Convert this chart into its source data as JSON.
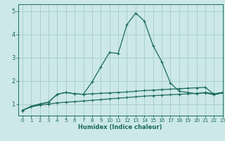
{
  "title": "",
  "xlabel": "Humidex (Indice chaleur)",
  "bg_color": "#cce8e8",
  "grid_color": "#aacfcf",
  "line_color": "#1a6b5a",
  "xlim": [
    -0.5,
    23
  ],
  "ylim": [
    0.5,
    5.3
  ],
  "yticks": [
    1,
    2,
    3,
    4,
    5
  ],
  "xticks": [
    0,
    1,
    2,
    3,
    4,
    5,
    6,
    7,
    8,
    9,
    10,
    11,
    12,
    13,
    14,
    15,
    16,
    17,
    18,
    19,
    20,
    21,
    22,
    23
  ],
  "curve1_x": [
    0,
    1,
    2,
    3,
    4,
    5,
    6,
    7,
    8,
    9,
    10,
    11,
    12,
    13,
    14,
    15,
    16,
    17,
    18,
    19,
    20,
    21,
    22,
    23
  ],
  "curve1_y": [
    0.72,
    0.88,
    0.95,
    1.0,
    1.05,
    1.08,
    1.1,
    1.13,
    1.16,
    1.19,
    1.22,
    1.25,
    1.28,
    1.31,
    1.34,
    1.36,
    1.38,
    1.4,
    1.42,
    1.44,
    1.46,
    1.48,
    1.4,
    1.48
  ],
  "curve2_x": [
    0,
    1,
    2,
    3,
    4,
    5,
    6,
    7,
    8,
    9,
    10,
    11,
    12,
    13,
    14,
    15,
    16,
    17,
    18,
    19,
    20,
    21,
    22,
    23
  ],
  "curve2_y": [
    0.72,
    0.9,
    1.0,
    1.08,
    1.42,
    1.5,
    1.44,
    1.42,
    1.44,
    1.46,
    1.48,
    1.5,
    1.52,
    1.55,
    1.58,
    1.6,
    1.62,
    1.64,
    1.66,
    1.68,
    1.7,
    1.72,
    1.42,
    1.5
  ],
  "curve3_x": [
    0,
    1,
    2,
    3,
    4,
    5,
    6,
    7,
    8,
    9,
    10,
    11,
    12,
    13,
    14,
    15,
    16,
    17,
    18,
    19,
    20,
    21,
    22,
    23
  ],
  "curve3_y": [
    0.72,
    0.9,
    1.0,
    1.08,
    1.42,
    1.5,
    1.44,
    1.42,
    1.95,
    2.6,
    3.22,
    3.18,
    4.42,
    4.92,
    4.58,
    3.52,
    2.82,
    1.9,
    1.55,
    1.5,
    1.44,
    1.5,
    1.44,
    1.5
  ],
  "marker": "+"
}
